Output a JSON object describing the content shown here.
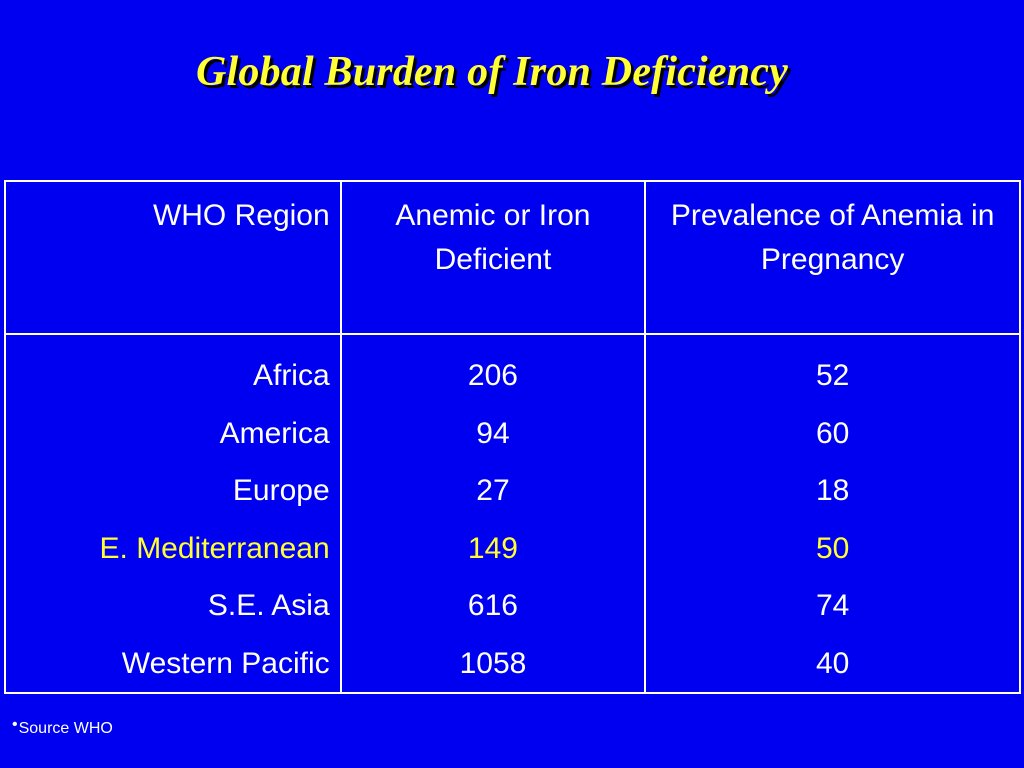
{
  "slide": {
    "title": "Global Burden of Iron Deficiency",
    "source_bullet": "•",
    "source_text": "Source WHO"
  },
  "colors": {
    "background": "#0000f0",
    "title": "#ffff33",
    "text": "#ffffff",
    "highlight": "#ffff33",
    "border": "#ffffff"
  },
  "table": {
    "headers": [
      "WHO Region",
      "Anemic or Iron Deficient",
      "Prevalence of Anemia in Pregnancy"
    ],
    "rows": [
      {
        "region": "Africa",
        "anemic": "206",
        "prevalence": "52",
        "highlight": false
      },
      {
        "region": "America",
        "anemic": "94",
        "prevalence": "60",
        "highlight": false
      },
      {
        "region": "Europe",
        "anemic": "27",
        "prevalence": "18",
        "highlight": false
      },
      {
        "region": "E. Mediterranean",
        "anemic": "149",
        "prevalence": "50",
        "highlight": true
      },
      {
        "region": "S.E. Asia",
        "anemic": "616",
        "prevalence": "74",
        "highlight": false
      },
      {
        "region": "Western Pacific",
        "anemic": "1058",
        "prevalence": "40",
        "highlight": false
      }
    ]
  }
}
